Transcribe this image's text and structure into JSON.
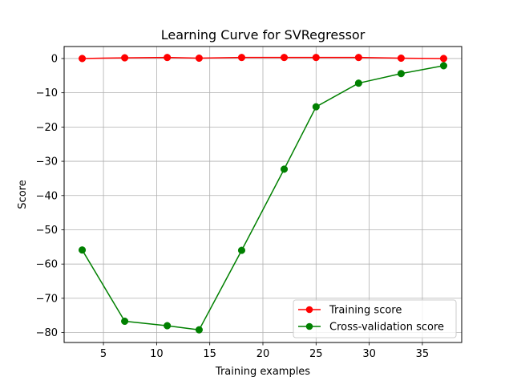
{
  "chart_data": {
    "type": "line",
    "title": "Learning Curve for SVRegressor",
    "xlabel": "Training examples",
    "ylabel": "Score",
    "xlim": [
      1.3,
      38.7
    ],
    "ylim": [
      -82.9,
      3.5
    ],
    "xticks": [
      5,
      10,
      15,
      20,
      25,
      30,
      35
    ],
    "yticks": [
      0,
      -10,
      -20,
      -30,
      -40,
      -50,
      -60,
      -70,
      -80
    ],
    "grid": true,
    "legend_position": "lower right",
    "series": [
      {
        "name": "Training score",
        "color": "#ff0000",
        "marker": "circle",
        "x": [
          3,
          7,
          11,
          14,
          18,
          22,
          25,
          29,
          33,
          37
        ],
        "y": [
          0.0,
          0.2,
          0.3,
          0.1,
          0.3,
          0.3,
          0.3,
          0.3,
          0.1,
          0.0
        ]
      },
      {
        "name": "Cross-validation score",
        "color": "#008000",
        "marker": "circle",
        "x": [
          3,
          7,
          11,
          14,
          18,
          22,
          25,
          29,
          33,
          37
        ],
        "y": [
          -55.9,
          -76.7,
          -78.0,
          -79.2,
          -56.0,
          -32.3,
          -14.1,
          -7.2,
          -4.4,
          -2.1
        ]
      }
    ]
  }
}
